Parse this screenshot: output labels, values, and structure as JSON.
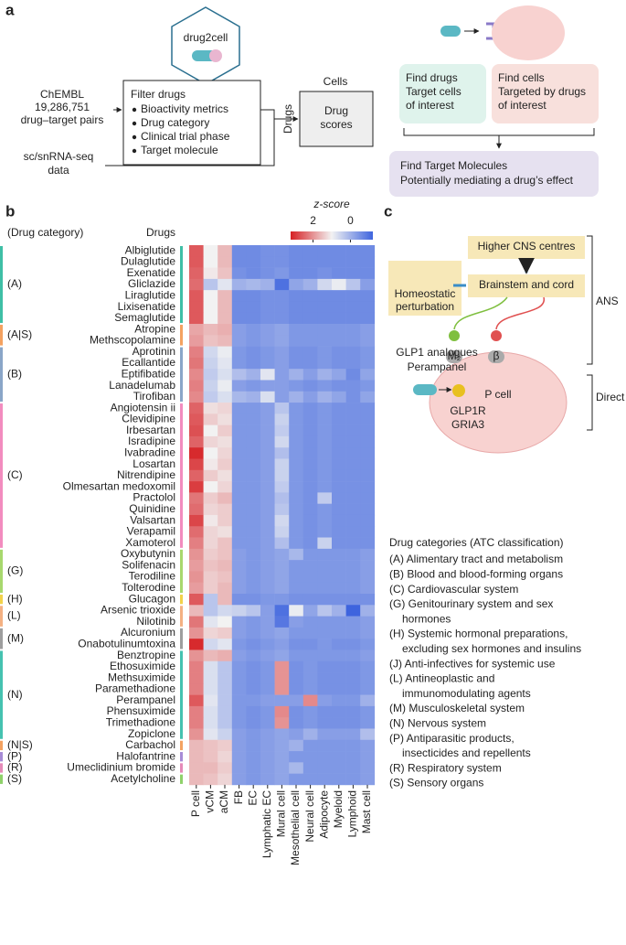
{
  "panel_a": {
    "label": "a",
    "tool": "drug2cell",
    "source": [
      "ChEMBL",
      "19,286,751",
      "drug–target pairs"
    ],
    "filter_title": "Filter drugs",
    "filters": [
      "Bioactivity metrics",
      "Drug category",
      "Clinical trial phase",
      "Target molecule"
    ],
    "sc_data": [
      "sc/snRNA-seq",
      "data"
    ],
    "cells": "Cells",
    "drugs": "Drugs",
    "scores": [
      "Drug",
      "scores"
    ],
    "find_drugs": [
      "Find drugs",
      "Target cells",
      "of interest"
    ],
    "find_cells": [
      "Find cells",
      "Targeted by drugs",
      "of interest"
    ],
    "find_targets": [
      "Find Target Molecules",
      "Potentially mediating a drug’s effect"
    ]
  },
  "chart_data": {
    "type": "heatmap",
    "label": "b",
    "category_header": "(Drug category)",
    "drug_header": "Drugs",
    "z_label": "z-score",
    "zlim": [
      -1.2,
      3.2
    ],
    "zticks": [
      2,
      0
    ],
    "columns": [
      "P cell",
      "vCM",
      "aCM",
      "FB",
      "EC",
      "Lymphatic EC",
      "Mural cell",
      "Mesothelial cell",
      "Neural cell",
      "Adipocyte",
      "Myeloid",
      "Lymphoid",
      "Mast cell"
    ],
    "groups": [
      {
        "label": "(A)",
        "color": "#3fbfa6",
        "drugs": [
          "Albiglutide",
          "Dulaglutide",
          "Exenatide",
          "Gliclazide",
          "Liraglutide",
          "Lixisenatide",
          "Semaglutide"
        ]
      },
      {
        "label": "(A|S)",
        "color": "#f4a261",
        "drugs": [
          "Atropine",
          "Methscopolamine"
        ]
      },
      {
        "label": "(B)",
        "color": "#8aa6c8",
        "drugs": [
          "Aprotinin",
          "Ecallantide",
          "Eptifibatide",
          "Lanadelumab",
          "Tirofiban"
        ]
      },
      {
        "label": "(C)",
        "color": "#f28cbf",
        "drugs": [
          "Angiotensin ii",
          "Clevidipine",
          "Irbesartan",
          "Isradipine",
          "Ivabradine",
          "Losartan",
          "Nitrendipine",
          "Olmesartan medoxomil",
          "Practolol",
          "Quinidine",
          "Valsartan",
          "Verapamil",
          "Xamoterol"
        ]
      },
      {
        "label": "(G)",
        "color": "#a8d86e",
        "drugs": [
          "Oxybutynin",
          "Solifenacin",
          "Terodiline",
          "Tolterodine"
        ]
      },
      {
        "label": "(H)",
        "color": "#f2d24b",
        "drugs": [
          "Glucagon"
        ]
      },
      {
        "label": "(L)",
        "color": "#f4b183",
        "drugs": [
          "Arsenic trioxide",
          "Nilotinib"
        ]
      },
      {
        "label": "(M)",
        "color": "#9e9e9e",
        "drugs": [
          "Alcuronium",
          "Onabotulinumtoxina"
        ]
      },
      {
        "label": "(N)",
        "color": "#45c2b0",
        "drugs": [
          "Benztropine",
          "Ethosuximide",
          "Methsuximide",
          "Paramethadione",
          "Perampanel",
          "Phensuximide",
          "Trimethadione",
          "Zopiclone"
        ]
      },
      {
        "label": "(N|S)",
        "color": "#f4a261",
        "drugs": [
          "Carbachol"
        ]
      },
      {
        "label": "(P)",
        "color": "#a78bd6",
        "drugs": [
          "Halofantrine"
        ]
      },
      {
        "label": "(R)",
        "color": "#e58ab8",
        "drugs": [
          "Umeclidinium bromide"
        ]
      },
      {
        "label": "(S)",
        "color": "#8fd16a",
        "drugs": [
          "Acetylcholine"
        ]
      }
    ],
    "values": [
      [
        2.6,
        1.0,
        1.6,
        -0.6,
        -0.6,
        -0.5,
        -0.5,
        -0.6,
        -0.6,
        -0.6,
        -0.6,
        -0.6,
        -0.6
      ],
      [
        2.6,
        1.0,
        1.6,
        -0.6,
        -0.6,
        -0.5,
        -0.5,
        -0.6,
        -0.6,
        -0.6,
        -0.6,
        -0.6,
        -0.6
      ],
      [
        2.5,
        1.1,
        1.5,
        -0.5,
        -0.6,
        -0.5,
        -0.4,
        -0.6,
        -0.6,
        -0.5,
        -0.6,
        -0.6,
        -0.6
      ],
      [
        2.4,
        0.3,
        0.8,
        0.0,
        0.1,
        0.0,
        -1.0,
        -0.2,
        0.0,
        0.6,
        0.9,
        0.3,
        -0.3
      ],
      [
        2.6,
        1.0,
        1.6,
        -0.6,
        -0.6,
        -0.5,
        -0.5,
        -0.6,
        -0.6,
        -0.6,
        -0.6,
        -0.6,
        -0.6
      ],
      [
        2.6,
        1.0,
        1.6,
        -0.6,
        -0.6,
        -0.5,
        -0.5,
        -0.6,
        -0.6,
        -0.6,
        -0.6,
        -0.6,
        -0.6
      ],
      [
        2.6,
        1.0,
        1.6,
        -0.6,
        -0.6,
        -0.5,
        -0.5,
        -0.6,
        -0.6,
        -0.6,
        -0.6,
        -0.6,
        -0.6
      ],
      [
        1.8,
        1.6,
        1.7,
        -0.3,
        -0.4,
        -0.3,
        -0.2,
        -0.4,
        -0.4,
        -0.4,
        -0.4,
        -0.4,
        -0.3
      ],
      [
        1.9,
        1.5,
        1.6,
        -0.3,
        -0.4,
        -0.3,
        -0.2,
        -0.4,
        -0.4,
        -0.4,
        -0.4,
        -0.4,
        -0.3
      ],
      [
        2.2,
        0.6,
        0.9,
        -0.4,
        -0.5,
        -0.4,
        -0.3,
        -0.5,
        -0.5,
        -0.4,
        -0.5,
        -0.5,
        -0.4
      ],
      [
        2.3,
        0.5,
        0.8,
        -0.4,
        -0.5,
        -0.4,
        -0.3,
        -0.5,
        -0.5,
        -0.4,
        -0.5,
        -0.5,
        -0.4
      ],
      [
        2.1,
        0.4,
        0.7,
        0.2,
        0.0,
        0.8,
        -0.3,
        0.0,
        -0.3,
        0.0,
        -0.2,
        -0.6,
        -0.2
      ],
      [
        2.2,
        0.5,
        0.9,
        -0.3,
        -0.4,
        -0.3,
        -0.3,
        -0.4,
        -0.5,
        -0.4,
        -0.5,
        -0.5,
        -0.4
      ],
      [
        2.1,
        0.4,
        0.7,
        0.1,
        0.0,
        0.7,
        -0.3,
        0.0,
        -0.3,
        0.0,
        -0.2,
        -0.5,
        -0.2
      ],
      [
        2.5,
        1.2,
        1.3,
        -0.4,
        -0.4,
        -0.3,
        0.3,
        -0.4,
        -0.5,
        -0.4,
        -0.5,
        -0.5,
        -0.5
      ],
      [
        2.6,
        1.4,
        1.2,
        -0.4,
        -0.4,
        -0.3,
        0.5,
        -0.4,
        -0.5,
        -0.4,
        -0.5,
        -0.5,
        -0.5
      ],
      [
        2.7,
        1.0,
        1.4,
        -0.4,
        -0.4,
        -0.3,
        0.4,
        -0.4,
        -0.5,
        -0.4,
        -0.5,
        -0.5,
        -0.5
      ],
      [
        2.5,
        1.3,
        1.2,
        -0.4,
        -0.4,
        -0.3,
        0.6,
        -0.4,
        -0.5,
        -0.4,
        -0.5,
        -0.5,
        -0.5
      ],
      [
        3.1,
        1.0,
        1.3,
        -0.4,
        -0.4,
        -0.3,
        0.2,
        -0.4,
        -0.5,
        -0.4,
        -0.5,
        -0.5,
        -0.5
      ],
      [
        2.8,
        1.1,
        1.4,
        -0.4,
        -0.4,
        -0.3,
        0.5,
        -0.4,
        -0.5,
        -0.4,
        -0.5,
        -0.5,
        -0.5
      ],
      [
        2.5,
        1.4,
        1.2,
        -0.4,
        -0.4,
        -0.3,
        0.5,
        -0.4,
        -0.5,
        -0.4,
        -0.5,
        -0.5,
        -0.5
      ],
      [
        2.9,
        1.0,
        1.3,
        -0.4,
        -0.4,
        -0.3,
        0.4,
        -0.4,
        -0.5,
        -0.4,
        -0.5,
        -0.5,
        -0.5
      ],
      [
        2.3,
        1.4,
        1.6,
        -0.4,
        -0.4,
        -0.3,
        0.2,
        -0.4,
        -0.5,
        0.4,
        -0.5,
        -0.5,
        -0.5
      ],
      [
        2.4,
        1.3,
        1.4,
        -0.4,
        -0.4,
        -0.3,
        0.3,
        -0.4,
        -0.5,
        -0.4,
        -0.5,
        -0.5,
        -0.5
      ],
      [
        2.8,
        1.1,
        1.4,
        -0.4,
        -0.4,
        -0.3,
        0.6,
        -0.4,
        -0.5,
        -0.4,
        -0.5,
        -0.5,
        -0.5
      ],
      [
        2.4,
        1.3,
        1.2,
        -0.4,
        -0.4,
        -0.3,
        0.5,
        -0.4,
        -0.5,
        -0.4,
        -0.5,
        -0.5,
        -0.5
      ],
      [
        2.2,
        1.3,
        1.5,
        -0.4,
        -0.4,
        -0.3,
        0.2,
        -0.4,
        -0.5,
        0.5,
        -0.5,
        -0.5,
        -0.5
      ],
      [
        2.0,
        1.4,
        1.5,
        -0.3,
        -0.4,
        -0.3,
        -0.2,
        0.1,
        -0.4,
        -0.4,
        -0.4,
        -0.4,
        -0.3
      ],
      [
        1.9,
        1.5,
        1.6,
        -0.3,
        -0.4,
        -0.3,
        -0.2,
        -0.4,
        -0.4,
        -0.4,
        -0.4,
        -0.4,
        -0.3
      ],
      [
        2.0,
        1.4,
        1.5,
        -0.3,
        -0.4,
        -0.3,
        -0.2,
        -0.4,
        -0.4,
        -0.4,
        -0.4,
        -0.4,
        -0.3
      ],
      [
        1.9,
        1.4,
        1.6,
        -0.3,
        -0.4,
        -0.3,
        -0.2,
        -0.4,
        -0.4,
        -0.4,
        -0.4,
        -0.4,
        -0.3
      ],
      [
        2.6,
        0.3,
        1.6,
        -0.5,
        -0.5,
        -0.4,
        -0.4,
        -0.5,
        -0.5,
        -0.5,
        -0.5,
        -0.5,
        -0.5
      ],
      [
        1.6,
        0.3,
        0.6,
        0.5,
        0.3,
        -0.3,
        -1.0,
        0.9,
        -0.2,
        0.3,
        0.0,
        -1.2,
        0.0
      ],
      [
        2.3,
        0.8,
        1.0,
        -0.3,
        -0.4,
        -0.3,
        -0.9,
        -0.3,
        -0.4,
        -0.4,
        -0.4,
        -0.4,
        -0.3
      ],
      [
        2.0,
        1.3,
        1.4,
        -0.3,
        -0.4,
        -0.3,
        -0.2,
        -0.4,
        -0.4,
        -0.4,
        -0.4,
        -0.4,
        -0.3
      ],
      [
        3.1,
        0.6,
        0.8,
        -0.4,
        -0.5,
        -0.4,
        -0.3,
        -0.5,
        -0.5,
        -0.4,
        -0.5,
        -0.5,
        -0.4
      ],
      [
        2.0,
        1.6,
        1.7,
        -0.3,
        -0.4,
        -0.3,
        -0.2,
        -0.4,
        -0.4,
        -0.4,
        -0.4,
        -0.4,
        -0.3
      ],
      [
        2.2,
        0.7,
        0.3,
        -0.4,
        -0.5,
        -0.4,
        2.0,
        -0.5,
        -0.4,
        -0.5,
        -0.5,
        -0.5,
        -0.4
      ],
      [
        2.2,
        0.7,
        0.3,
        -0.4,
        -0.5,
        -0.4,
        2.0,
        -0.5,
        -0.4,
        -0.5,
        -0.5,
        -0.5,
        -0.4
      ],
      [
        2.2,
        0.7,
        0.3,
        -0.4,
        -0.5,
        -0.4,
        2.0,
        -0.5,
        -0.4,
        -0.5,
        -0.5,
        -0.5,
        -0.4
      ],
      [
        2.6,
        0.8,
        0.3,
        -0.4,
        -0.4,
        -0.3,
        -0.3,
        -0.3,
        2.1,
        -0.3,
        -0.4,
        -0.4,
        0.0
      ],
      [
        2.2,
        0.7,
        0.3,
        -0.4,
        -0.5,
        -0.4,
        2.1,
        -0.5,
        -0.4,
        -0.5,
        -0.5,
        -0.5,
        -0.4
      ],
      [
        2.2,
        0.7,
        0.3,
        -0.4,
        -0.5,
        -0.4,
        2.0,
        -0.5,
        -0.4,
        -0.5,
        -0.5,
        -0.5,
        -0.4
      ],
      [
        2.0,
        0.8,
        0.5,
        -0.3,
        -0.4,
        -0.3,
        -0.2,
        -0.3,
        0.0,
        -0.3,
        -0.3,
        -0.3,
        0.2
      ],
      [
        1.6,
        1.5,
        1.4,
        -0.3,
        -0.4,
        -0.3,
        -0.2,
        0.0,
        -0.4,
        -0.4,
        -0.4,
        -0.4,
        -0.3
      ],
      [
        1.6,
        1.5,
        1.3,
        -0.3,
        -0.4,
        -0.3,
        -0.2,
        -0.4,
        -0.4,
        -0.4,
        -0.4,
        -0.4,
        -0.3
      ],
      [
        1.6,
        1.6,
        1.4,
        -0.3,
        -0.4,
        -0.3,
        -0.2,
        0.1,
        -0.4,
        -0.4,
        -0.4,
        -0.4,
        -0.3
      ],
      [
        1.6,
        1.5,
        1.3,
        -0.3,
        -0.4,
        -0.3,
        -0.2,
        -0.4,
        -0.4,
        -0.4,
        -0.4,
        -0.4,
        -0.3
      ]
    ]
  },
  "panel_c": {
    "label": "c",
    "higher": "Higher CNS centres",
    "homeostatic": [
      "Homeostatic",
      "perturbation"
    ],
    "brainstem": "Brainstem and cord",
    "ans": "ANS",
    "drugs": [
      "GLP1 analogues",
      "Perampanel"
    ],
    "m2": "M₂",
    "beta": "β",
    "cell": "P cell",
    "receptors": [
      "GLP1R",
      "GRIA3"
    ],
    "direct": "Direct",
    "legend_title": "Drug categories (ATC classification)",
    "legend": [
      [
        "(A) Alimentary tract and metabolism"
      ],
      [
        "(B) Blood and blood-forming organs"
      ],
      [
        "(C) Cardiovascular system"
      ],
      [
        "(G) Genitourinary system and sex",
        "hormones"
      ],
      [
        "(H) Systemic hormonal preparations,",
        "excluding sex hormones and insulins"
      ],
      [
        "(J) Anti-infectives for systemic use"
      ],
      [
        "(L) Antineoplastic and",
        "immunomodulating agents"
      ],
      [
        "(M) Musculoskeletal system"
      ],
      [
        "(N) Nervous system"
      ],
      [
        "(P) Antiparasitic products,",
        "insecticides and repellents"
      ],
      [
        "(R) Respiratory system"
      ],
      [
        "(S) Sensory organs"
      ]
    ]
  }
}
